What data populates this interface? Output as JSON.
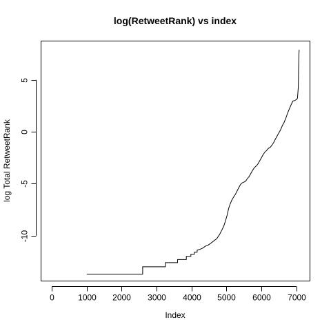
{
  "chart_data": {
    "type": "line",
    "title": "log(RetweetRank) vs index",
    "xlabel": "Index",
    "ylabel": "log Total RetweetRank",
    "xlim": [
      -300,
      7400
    ],
    "ylim": [
      -14.4,
      8.7
    ],
    "xticks": [
      0,
      1000,
      2000,
      3000,
      4000,
      5000,
      6000,
      7000
    ],
    "yticks": [
      -10,
      -5,
      0,
      5
    ],
    "grid": false,
    "legend": "none",
    "line_color": "#000000",
    "series": [
      {
        "x": [
          1000,
          2600,
          2600,
          3250,
          3250,
          3600,
          3600,
          3850,
          3850,
          3980,
          3980,
          4080,
          4080,
          4160,
          4160,
          4250,
          4320,
          4400,
          4480,
          4560,
          4640,
          4720,
          4800,
          4860,
          4920,
          4970,
          5020,
          5060,
          5100,
          5150,
          5200,
          5260,
          5320,
          5380,
          5420,
          5460,
          5500,
          5550,
          5600,
          5650,
          5700,
          5750,
          5800,
          5850,
          5900,
          5950,
          6000,
          6050,
          6100,
          6150,
          6200,
          6250,
          6300,
          6350,
          6400,
          6450,
          6500,
          6550,
          6600,
          6650,
          6700,
          6750,
          6800,
          6850,
          6900,
          6950,
          7000,
          7030,
          7040,
          7055,
          7060,
          7065,
          7070,
          7072,
          7075,
          7078,
          7080
        ],
        "y": [
          -13.7,
          -13.7,
          -13.0,
          -13.0,
          -12.6,
          -12.6,
          -12.3,
          -12.3,
          -12.0,
          -12.0,
          -11.8,
          -11.8,
          -11.6,
          -11.6,
          -11.4,
          -11.3,
          -11.2,
          -11.0,
          -10.9,
          -10.7,
          -10.5,
          -10.3,
          -9.9,
          -9.5,
          -9.1,
          -8.6,
          -8.0,
          -7.4,
          -7.0,
          -6.6,
          -6.3,
          -6.0,
          -5.6,
          -5.2,
          -5.0,
          -4.9,
          -4.85,
          -4.75,
          -4.5,
          -4.3,
          -4.0,
          -3.7,
          -3.45,
          -3.3,
          -3.1,
          -2.8,
          -2.5,
          -2.2,
          -1.95,
          -1.8,
          -1.6,
          -1.5,
          -1.3,
          -1.05,
          -0.7,
          -0.4,
          -0.1,
          0.2,
          0.6,
          0.9,
          1.3,
          1.8,
          2.2,
          2.6,
          2.95,
          3.0,
          3.1,
          3.2,
          3.6,
          4.2,
          5.0,
          6.0,
          6.8,
          7.2,
          7.5,
          7.7,
          7.9
        ]
      }
    ]
  }
}
